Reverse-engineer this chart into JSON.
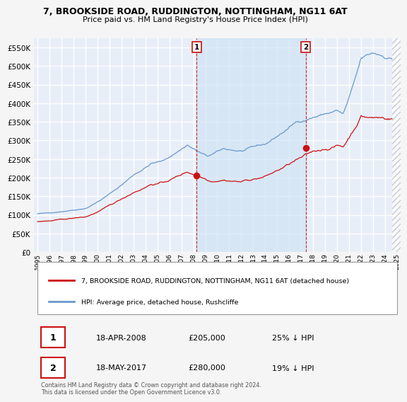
{
  "title": "7, BROOKSIDE ROAD, RUDDINGTON, NOTTINGHAM, NG11 6AT",
  "subtitle": "Price paid vs. HM Land Registry's House Price Index (HPI)",
  "yticks": [
    0,
    50000,
    100000,
    150000,
    200000,
    250000,
    300000,
    350000,
    400000,
    450000,
    500000,
    550000
  ],
  "ylim": [
    0,
    575000
  ],
  "xlim_start": 1994.7,
  "xlim_end": 2025.3,
  "background_color": "#f5f5f5",
  "plot_bg_color": "#e8eef8",
  "grid_color": "#ffffff",
  "hpi_color": "#6699cc",
  "sale_color": "#cc1111",
  "shade_color": "#d0e4f5",
  "marker1_x": 2008.29,
  "marker1_y": 205000,
  "marker2_x": 2017.38,
  "marker2_y": 280000,
  "legend_line1": "7, BROOKSIDE ROAD, RUDDINGTON, NOTTINGHAM, NG11 6AT (detached house)",
  "legend_line2": "HPI: Average price, detached house, Rushcliffe",
  "annotation1_date": "18-APR-2008",
  "annotation1_price": "£205,000",
  "annotation1_hpi": "25% ↓ HPI",
  "annotation2_date": "18-MAY-2017",
  "annotation2_price": "£280,000",
  "annotation2_hpi": "19% ↓ HPI",
  "footer": "Contains HM Land Registry data © Crown copyright and database right 2024.\nThis data is licensed under the Open Government Licence v3.0."
}
